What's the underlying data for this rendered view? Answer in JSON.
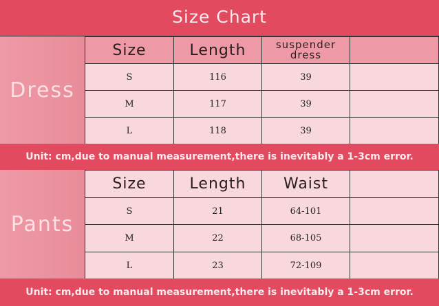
{
  "title": "Size Chart",
  "dress": {
    "label": "Dress",
    "headers": [
      "Size",
      "Length",
      "suspender dress",
      ""
    ],
    "rows": [
      [
        "S",
        "116",
        "39",
        ""
      ],
      [
        "M",
        "117",
        "39",
        ""
      ],
      [
        "L",
        "118",
        "39",
        ""
      ]
    ]
  },
  "pants": {
    "label": "Pants",
    "headers": [
      "Size",
      "Length",
      "Waist",
      ""
    ],
    "rows": [
      [
        "S",
        "21",
        "64-101",
        ""
      ],
      [
        "M",
        "22",
        "68-105",
        ""
      ],
      [
        "L",
        "23",
        "72-109",
        ""
      ]
    ]
  },
  "unit_note": "Unit: cm,due to manual measurement,there is inevitably a 1-3cm error.",
  "colors": {
    "banner": "#e14a5f",
    "label_bg": "#ee9aa6",
    "cell_bg": "#f8d8dd"
  }
}
